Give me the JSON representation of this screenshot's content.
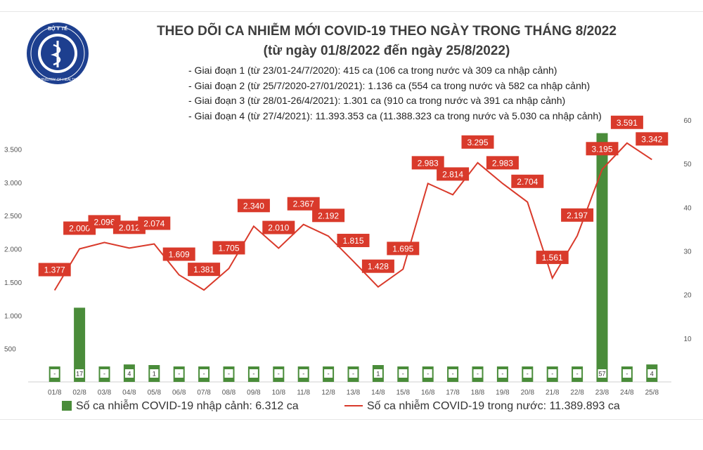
{
  "header": {
    "title": "THEO DÕI CA NHIỄM MỚI COVID-19 THEO NGÀY TRONG THÁNG 8/2022",
    "subtitle": "(từ ngày 01/8/2022 đến ngày 25/8/2022)",
    "stages": [
      "- Giai đoạn 1 (từ 23/01-24/7/2020): 415 ca (106 ca trong nước và 309 ca nhập cảnh)",
      "- Giai đoạn 2 (từ 25/7/2020-27/01/2021): 1.136 ca (554 ca trong nước và 582 ca nhập cảnh)",
      "- Giai đoạn 3 (từ 28/01-26/4/2021): 1.301 ca (910 ca trong nước và 391 ca nhập cảnh)",
      "- Giai đoạn 4 (từ 27/4/2021): 11.393.353 ca (11.388.323 ca trong nước và 5.030 ca nhập cảnh)"
    ]
  },
  "logo": {
    "top_text": "BỘ Y TẾ",
    "bottom_text": "MINISTRY OF HEALTH"
  },
  "legend": {
    "bar_label": "Số ca nhiễm COVID-19 nhập cảnh: 6.312 ca",
    "line_label": "Số ca nhiễm COVID-19 trong nước: 11.389.893 ca"
  },
  "colors": {
    "bar": "#4a8c3a",
    "line": "#d93a2b",
    "label_bg": "#d93a2b"
  },
  "chart_data": {
    "type": "bar+line",
    "categories": [
      "01/8",
      "02/8",
      "03/8",
      "04/8",
      "05/8",
      "06/8",
      "07/8",
      "08/8",
      "09/8",
      "10/8",
      "11/8",
      "12/8",
      "13/8",
      "14/8",
      "15/8",
      "16/8",
      "17/8",
      "18/8",
      "19/8",
      "20/8",
      "21/8",
      "22/8",
      "23/8",
      "24/8",
      "25/8"
    ],
    "series": [
      {
        "name": "Số ca nhiễm COVID-19 nhập cảnh",
        "type": "bar",
        "axis": "right",
        "values": [
          0,
          17,
          0,
          4,
          1,
          0,
          0,
          0,
          0,
          0,
          0,
          0,
          0,
          1,
          0,
          0,
          0,
          0,
          0,
          0,
          0,
          0,
          57,
          0,
          4
        ],
        "labels": [
          "-",
          "17",
          "-",
          "4",
          "1",
          "-",
          "-",
          "-",
          "-",
          "-",
          "-",
          "-",
          "-",
          "1",
          "-",
          "-",
          "-",
          "-",
          "-",
          "-",
          "-",
          "-",
          "57",
          "-",
          "4"
        ]
      },
      {
        "name": "Số ca nhiễm COVID-19 trong nước",
        "type": "line",
        "axis": "left",
        "values": [
          1377,
          2000,
          2096,
          2012,
          2074,
          1609,
          1381,
          1705,
          2340,
          2010,
          2367,
          2192,
          1815,
          1428,
          1695,
          2983,
          2814,
          3295,
          2983,
          2704,
          1561,
          2197,
          3195,
          3591,
          3342
        ],
        "labels": [
          "1.377",
          "2.000",
          "2.096",
          "2.012",
          "2.074",
          "1.609",
          "1.381",
          "1.705",
          "2.340",
          "2.010",
          "2.367",
          "2.192",
          "1.815",
          "1.428",
          "1.695",
          "2.983",
          "2.814",
          "3.295",
          "2.983",
          "2.704",
          "1.561",
          "2.197",
          "3.195",
          "3.591",
          "3.342"
        ]
      }
    ],
    "y_left": {
      "min": 0,
      "max": 4000,
      "ticks": [
        500,
        1000,
        1500,
        2000,
        2500,
        3000,
        3500
      ],
      "tick_labels": [
        "500",
        "1.000",
        "1.500",
        "2.000",
        "2.500",
        "3.000",
        "3.500"
      ]
    },
    "y_right": {
      "min": 0,
      "max": 60,
      "ticks": [
        10,
        20,
        30,
        40,
        50,
        60
      ],
      "tick_labels": [
        "10",
        "20",
        "30",
        "40",
        "50",
        "60"
      ]
    }
  }
}
